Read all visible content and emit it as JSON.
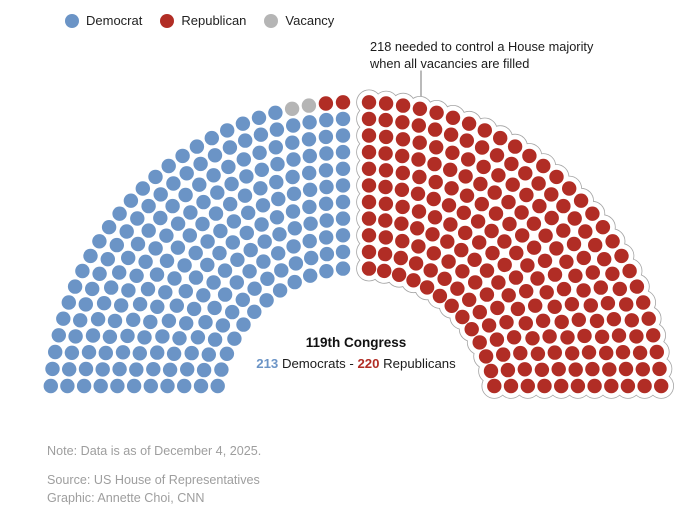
{
  "legend": {
    "items": [
      {
        "party": "Democrat",
        "label": "Democrat"
      },
      {
        "party": "Republican",
        "label": "Republican"
      },
      {
        "party": "Vacancy",
        "label": "Vacancy"
      }
    ]
  },
  "annotation": {
    "line1": "218 needed to control a House majority",
    "line2": "when all vacancies are filled"
  },
  "center_label": {
    "title": "119th Congress",
    "dem_count": "213",
    "dem_label": "Democrats",
    "separator": "-",
    "rep_count": "220",
    "rep_label": "Republicans"
  },
  "footer": {
    "note": "Note: Data is as of December 4, 2025.",
    "source": "Source: US House of Representatives",
    "credit": "Graphic: Annette Choi, CNN"
  },
  "colors": {
    "outline": "#a5a5a5",
    "pointer": "#8c8c8c",
    "background": "#ffffff"
  },
  "chart_data": {
    "type": "parliament",
    "title": "119th Congress",
    "total_seats": 435,
    "majority_threshold": 218,
    "composition": [
      {
        "party": "Democrat",
        "seats": 213,
        "color": "#6b94c6"
      },
      {
        "party": "Republican",
        "seats": 220,
        "color": "#b12d25"
      },
      {
        "party": "Vacancy",
        "seats": 2,
        "color": "#b5b5b5"
      }
    ],
    "layout": {
      "shape": "half-donut, two quadrant fans separated by a center aisle",
      "rows": 11,
      "left_fan_total": 217,
      "left_fan": {
        "Democrat": 213,
        "Vacancy": 2,
        "Republican": 2
      },
      "right_fan_total": 218,
      "right_fan": {
        "Republican": 218
      },
      "outlined_group": "right fan (218 seats) enclosed by scalloped outline",
      "vacancy_position": "outer row of left fan, 3rd and 4th seats from the aisle",
      "legend_position": "top-left",
      "annotation_points_to": "top edge of outlined 218-seat group"
    }
  }
}
